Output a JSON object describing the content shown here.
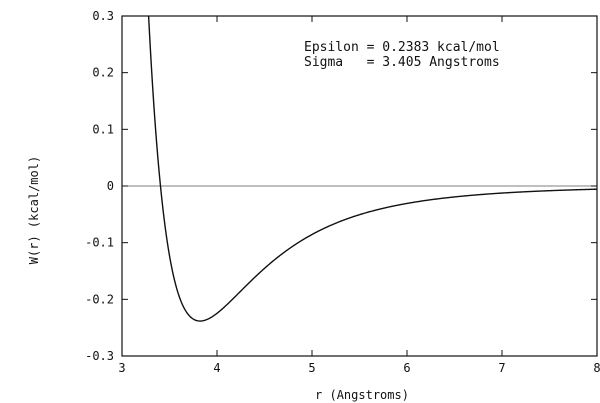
{
  "chart_data": {
    "type": "line",
    "title": "",
    "xlabel": "r (Angstroms)",
    "ylabel": "W(r)  (kcal/mol)",
    "xlim": [
      3,
      8
    ],
    "ylim": [
      -0.3,
      0.3
    ],
    "x_ticks": [
      3,
      4,
      5,
      6,
      7,
      8
    ],
    "y_ticks": [
      -0.3,
      -0.2,
      -0.1,
      0,
      0.1,
      0.2,
      0.3
    ],
    "x_tick_labels": [
      "3",
      "4",
      "5",
      "6",
      "7",
      "8"
    ],
    "y_tick_labels": [
      "-0.3",
      "-0.2",
      "-0.1",
      "0",
      "0.1",
      "0.2",
      "0.3"
    ],
    "grid": false,
    "zero_line": true,
    "annotations": [
      "Epsilon = 0.2383 kcal/mol",
      "Sigma   = 3.405 Angstroms"
    ],
    "epsilon": 0.2383,
    "sigma": 3.405,
    "series": [
      {
        "x": [
          3.3,
          3.35,
          3.405,
          3.45,
          3.5,
          3.6,
          3.7,
          3.822,
          3.9,
          4.0,
          4.2,
          4.4,
          4.6,
          4.8,
          5.0,
          5.5,
          6.0,
          6.5,
          7.0,
          7.5,
          8.0
        ],
        "y": [
          0.34,
          0.13,
          0.0,
          -0.08,
          -0.137,
          -0.202,
          -0.232,
          -0.2383,
          -0.235,
          -0.225,
          -0.196,
          -0.164,
          -0.135,
          -0.111,
          -0.091,
          -0.055,
          -0.034,
          -0.022,
          -0.0146,
          -0.0098,
          -0.0067
        ]
      }
    ]
  }
}
